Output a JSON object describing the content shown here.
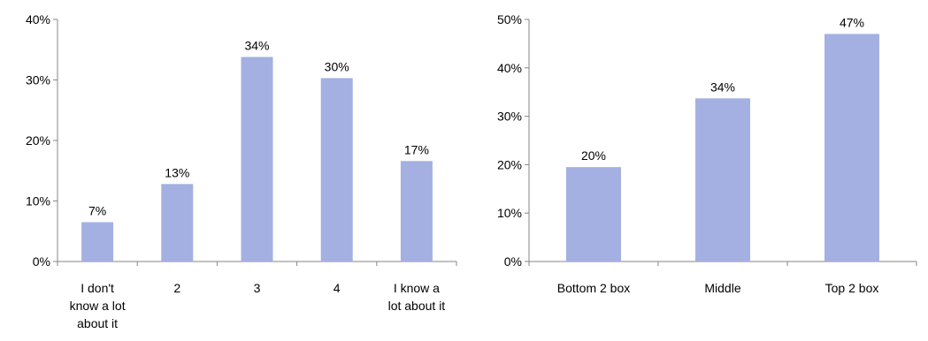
{
  "bar_color": "#a3b0e1",
  "axis_color": "#868686",
  "chart_data": [
    {
      "type": "bar",
      "categories": [
        [
          "I don't",
          "know a lot",
          "about it"
        ],
        [
          "2"
        ],
        [
          "3"
        ],
        [
          "4"
        ],
        [
          "I know a",
          "lot about it"
        ]
      ],
      "values": [
        6.5,
        12.8,
        33.8,
        30.3,
        16.6
      ],
      "labels": [
        "7%",
        "13%",
        "34%",
        "30%",
        "17%"
      ],
      "ylim": [
        0,
        40
      ],
      "yticks": [
        0,
        10,
        20,
        30,
        40
      ],
      "ytick_labels": [
        "0%",
        "10%",
        "20%",
        "30%",
        "40%"
      ],
      "grid": false
    },
    {
      "type": "bar",
      "categories": [
        [
          "Bottom 2 box"
        ],
        [
          "Middle"
        ],
        [
          "Top 2 box"
        ]
      ],
      "values": [
        19.5,
        33.7,
        47.0
      ],
      "labels": [
        "20%",
        "34%",
        "47%"
      ],
      "ylim": [
        0,
        50
      ],
      "yticks": [
        0,
        10,
        20,
        30,
        40,
        50
      ],
      "ytick_labels": [
        "0%",
        "10%",
        "20%",
        "30%",
        "40%",
        "50%"
      ],
      "grid": false
    }
  ]
}
